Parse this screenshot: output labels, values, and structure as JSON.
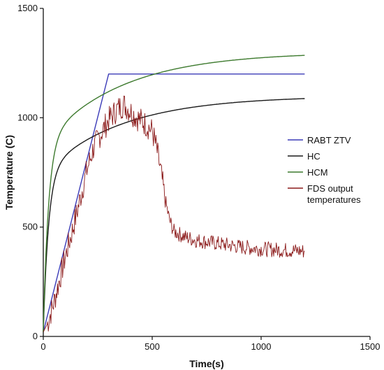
{
  "chart_data": {
    "type": "line",
    "title": "",
    "xlabel": "Time(s)",
    "ylabel": "Temperature (C)",
    "xlim": [
      0,
      1500
    ],
    "ylim": [
      0,
      1500
    ],
    "xticks": [
      0,
      500,
      1000,
      1500
    ],
    "yticks": [
      0,
      500,
      1000,
      1500
    ],
    "grid": false,
    "legend_position": "right",
    "series": [
      {
        "name": "RABT ZTV",
        "color": "#3b3bb8",
        "x": [
          0,
          300,
          1200
        ],
        "y": [
          20,
          1200,
          1200
        ]
      },
      {
        "name": "HC",
        "color": "#1a1a1a",
        "x": [
          0,
          10,
          30,
          60,
          100,
          150,
          200,
          300,
          400,
          500,
          600,
          700,
          800,
          900,
          1000,
          1100,
          1200
        ],
        "y": [
          20,
          499,
          717,
          810,
          860,
          897,
          923,
          962,
          990,
          1012,
          1029,
          1043,
          1055,
          1064,
          1072,
          1079,
          1085
        ]
      },
      {
        "name": "HCM",
        "color": "#3d7a2e",
        "x": [
          0,
          10,
          30,
          60,
          100,
          150,
          200,
          300,
          400,
          500,
          600,
          700,
          800,
          900,
          1000,
          1100,
          1200
        ],
        "y": [
          20,
          673,
          912,
          983,
          1024,
          1056,
          1080,
          1116,
          1143,
          1164,
          1181,
          1196,
          1210,
          1222,
          1232,
          1242,
          1251
        ]
      },
      {
        "name": "FDS output temperatures",
        "color": "#8b1a1a",
        "x": [
          0,
          20,
          50,
          80,
          100,
          130,
          160,
          200,
          230,
          260,
          300,
          340,
          370,
          400,
          430,
          460,
          500,
          520,
          540,
          560,
          580,
          600,
          620,
          650,
          700,
          800,
          900,
          1000,
          1100,
          1200
        ],
        "y": [
          20,
          60,
          160,
          280,
          360,
          470,
          590,
          760,
          860,
          920,
          990,
          1040,
          1060,
          1030,
          1000,
          980,
          940,
          860,
          750,
          620,
          530,
          480,
          470,
          455,
          440,
          425,
          410,
          400,
          395,
          390
        ]
      }
    ]
  }
}
